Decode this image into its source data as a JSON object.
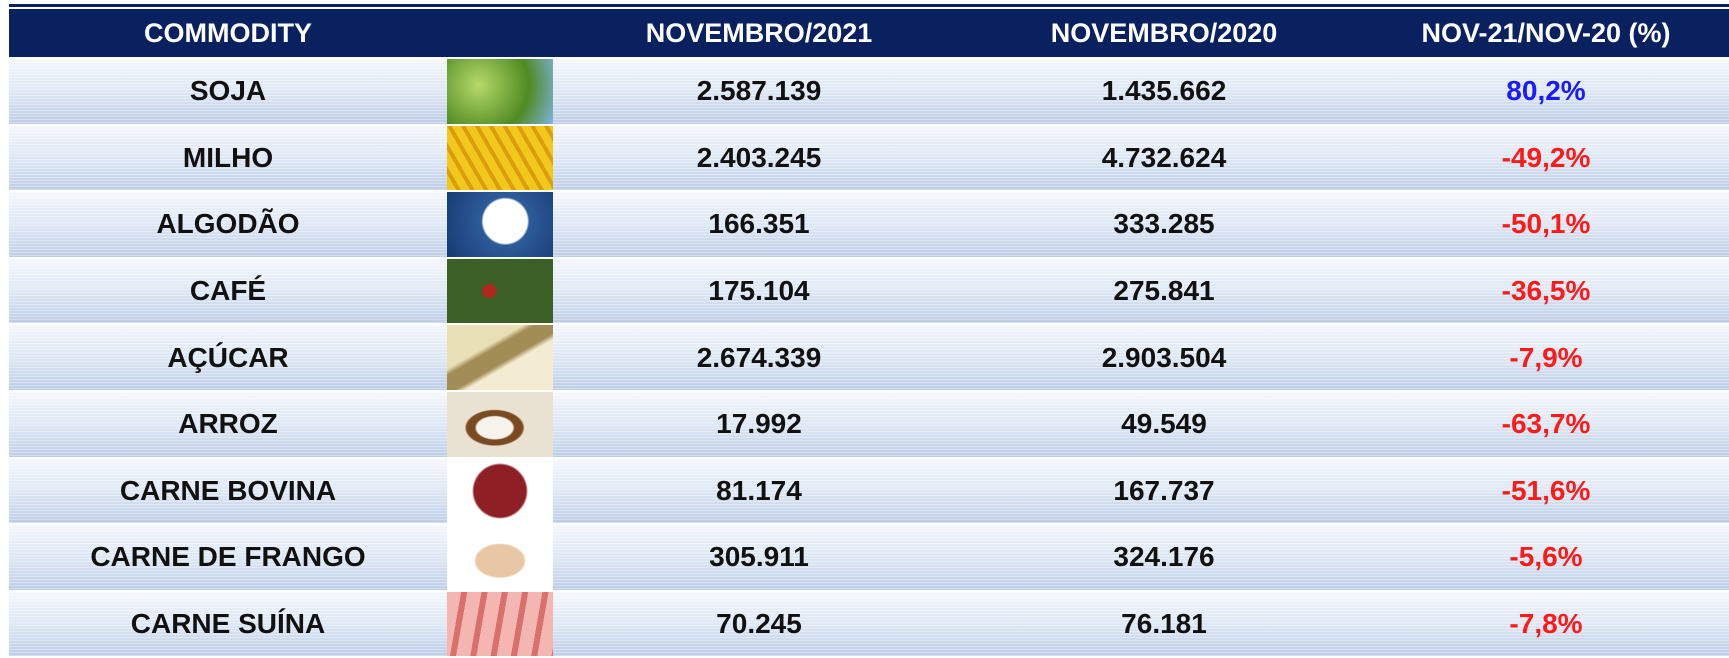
{
  "table": {
    "header": [
      "COMMODITY",
      "NOVEMBRO/2021",
      "NOVEMBRO/2020",
      "NOV-21/NOV-20 (%)"
    ],
    "rows": [
      [
        "SOJA",
        "2.587.139",
        "1.435.662",
        "80,2%"
      ],
      [
        "MILHO",
        "2.403.245",
        "4.732.624",
        "-49,2%"
      ],
      [
        "ALGODÃO",
        "166.351",
        "333.285",
        "-50,1%"
      ],
      [
        "CAFÉ",
        "175.104",
        "275.841",
        "-36,5%"
      ],
      [
        "AÇÚCAR",
        "2.674.339",
        "2.903.504",
        "-7,9%"
      ],
      [
        "ARROZ",
        "17.992",
        "49.549",
        "-63,7%"
      ],
      [
        "CARNE BOVINA",
        "81.174",
        "167.737",
        "-51,6%"
      ],
      [
        "CARNE DE FRANGO",
        "305.911",
        "324.176",
        "-5,6%"
      ],
      [
        "CARNE SUÍNA",
        "70.245",
        "76.181",
        "-7,8%"
      ]
    ],
    "change_colors": {
      "up": "#1a1aff",
      "down": "#ff1a1a"
    }
  }
}
